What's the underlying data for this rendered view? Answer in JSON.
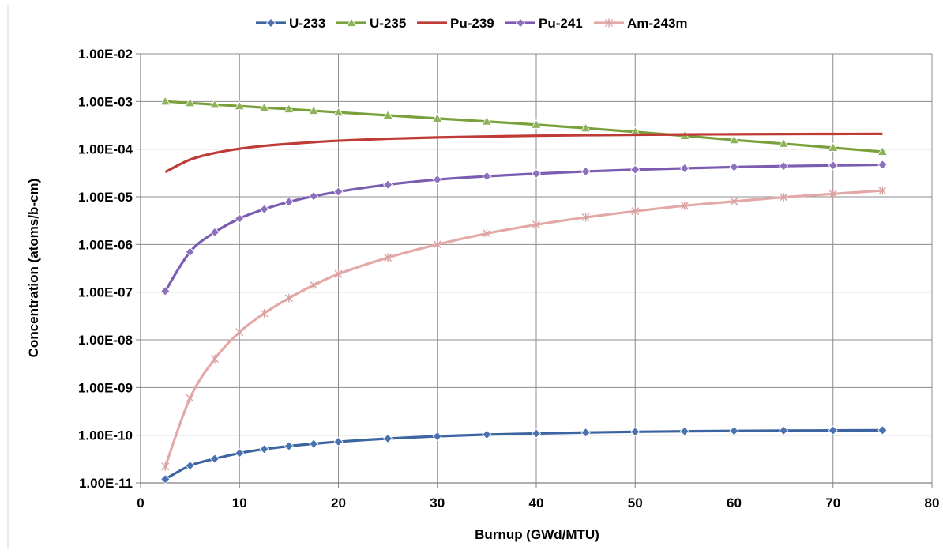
{
  "chart_data": {
    "type": "line",
    "title": "",
    "xlabel": "Burnup (GWd/MTU)",
    "ylabel": "Concentration (atoms/b-cm)",
    "xlim": [
      0,
      80
    ],
    "ylim": [
      1e-11,
      0.01
    ],
    "yscale": "log",
    "x_ticks": [
      "0",
      "10",
      "20",
      "30",
      "40",
      "50",
      "60",
      "70",
      "80"
    ],
    "x_tick_values": [
      0,
      10,
      20,
      30,
      40,
      50,
      60,
      70,
      80
    ],
    "y_ticks": [
      "1.00E-11",
      "1.00E-10",
      "1.00E-09",
      "1.00E-08",
      "1.00E-07",
      "1.00E-06",
      "1.00E-05",
      "1.00E-04",
      "1.00E-03",
      "1.00E-02"
    ],
    "y_tick_values": [
      1e-11,
      1e-10,
      1e-09,
      1e-08,
      1e-07,
      1e-06,
      1e-05,
      0.0001,
      0.001,
      0.01
    ],
    "grid": true,
    "legend_position": "top",
    "x": [
      2.5,
      5,
      7.5,
      10,
      12.5,
      15,
      17.5,
      20,
      25,
      30,
      35,
      40,
      45,
      50,
      55,
      60,
      65,
      70,
      75
    ],
    "series": [
      {
        "name": "U-233",
        "color": "#4a72b0",
        "line_color": "#3c64a0",
        "marker": "diamond",
        "values": [
          1.2e-11,
          2.3e-11,
          3.2e-11,
          4.2e-11,
          5.1e-11,
          5.9e-11,
          6.6e-11,
          7.3e-11,
          8.5e-11,
          9.5e-11,
          1.03e-10,
          1.09e-10,
          1.14e-10,
          1.18e-10,
          1.21e-10,
          1.23e-10,
          1.25e-10,
          1.26e-10,
          1.27e-10
        ]
      },
      {
        "name": "U-235",
        "color": "#8fb35a",
        "line_color": "#7aa03c",
        "marker": "triangle",
        "values": [
          0.001,
          0.00093,
          0.00086,
          0.0008,
          0.00074,
          0.00069,
          0.00064,
          0.00059,
          0.00051,
          0.00044,
          0.00038,
          0.000325,
          0.000275,
          0.00023,
          0.00019,
          0.000155,
          0.00013,
          0.000107,
          8.8e-05
        ]
      },
      {
        "name": "Pu-239",
        "color": "#c0504d",
        "line_color": "#be3b36",
        "marker": "none",
        "values": [
          3.3e-05,
          6e-05,
          8.3e-05,
          0.000102,
          0.000117,
          0.000129,
          0.00014,
          0.00015,
          0.000165,
          0.000176,
          0.000184,
          0.000191,
          0.000196,
          0.0002,
          0.000203,
          0.000205,
          0.000207,
          0.000208,
          0.000209
        ]
      },
      {
        "name": "Pu-241",
        "color": "#8d6fbd",
        "line_color": "#7a5cb0",
        "marker": "diamond",
        "values": [
          1.05e-07,
          7e-07,
          1.8e-06,
          3.5e-06,
          5.5e-06,
          7.8e-06,
          1.03e-05,
          1.28e-05,
          1.8e-05,
          2.3e-05,
          2.7e-05,
          3.05e-05,
          3.4e-05,
          3.7e-05,
          3.95e-05,
          4.2e-05,
          4.4e-05,
          4.55e-05,
          4.7e-05
        ]
      },
      {
        "name": "Am-243m",
        "color": "#e6b0af",
        "line_color": "#e3a9a8",
        "marker": "star",
        "values": [
          2.2e-11,
          6e-10,
          4e-09,
          1.45e-08,
          3.6e-08,
          7.5e-08,
          1.4e-07,
          2.4e-07,
          5.3e-07,
          1e-06,
          1.7e-06,
          2.6e-06,
          3.7e-06,
          5e-06,
          6.5e-06,
          8e-06,
          9.8e-06,
          1.15e-05,
          1.35e-05
        ]
      }
    ]
  }
}
